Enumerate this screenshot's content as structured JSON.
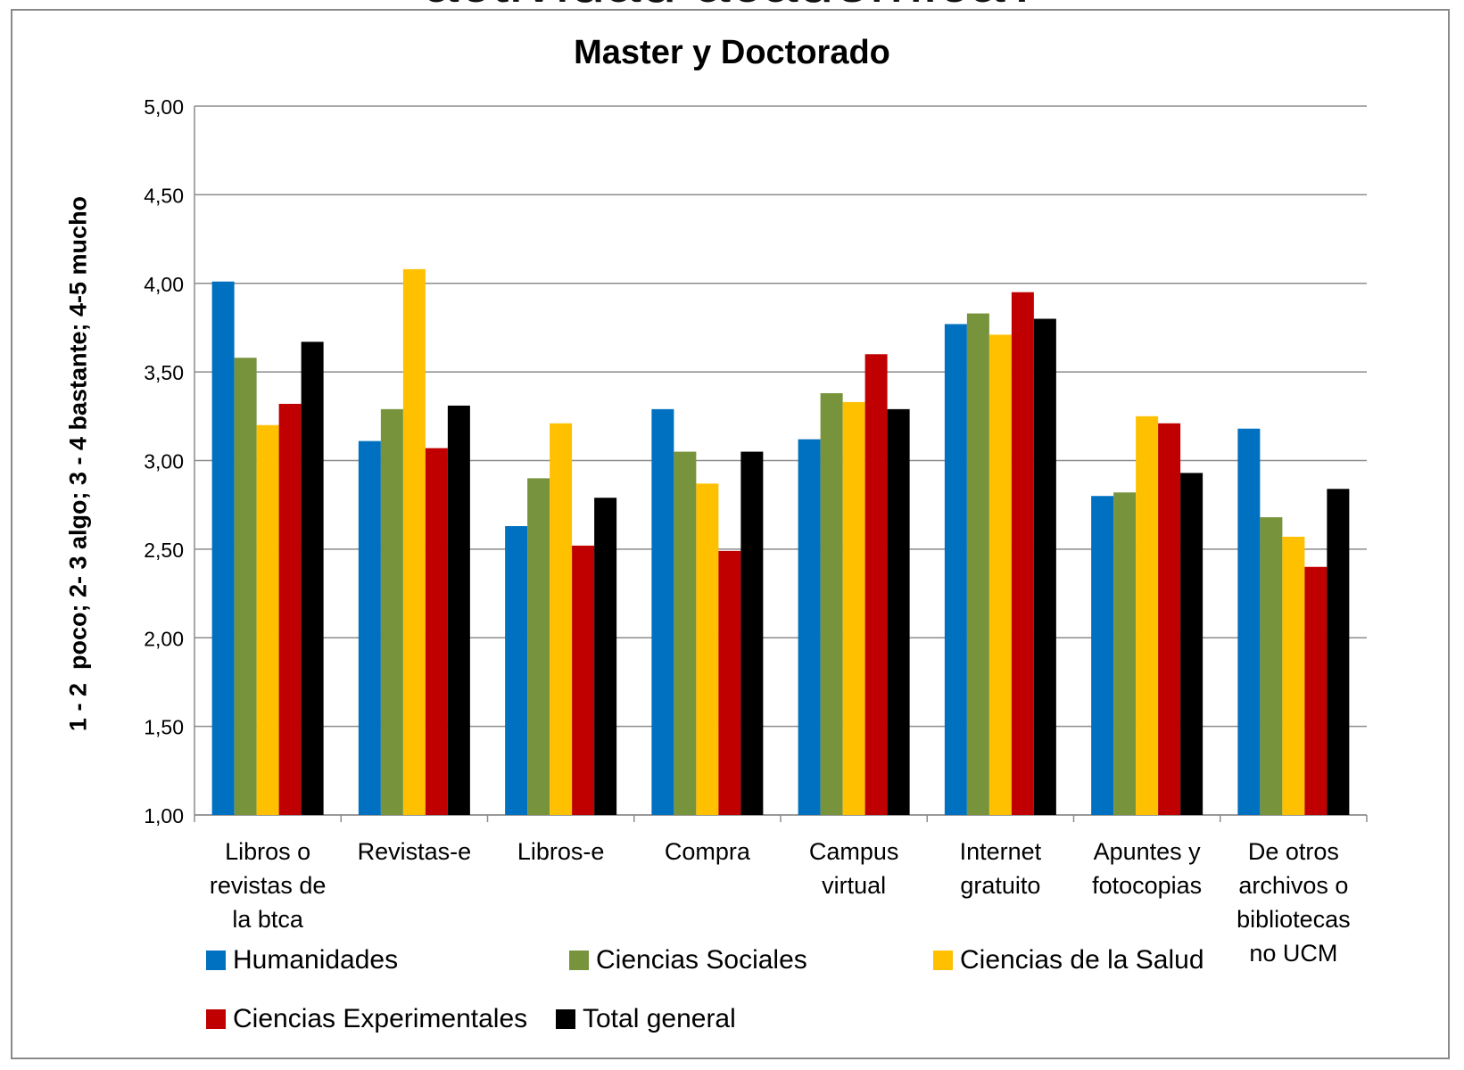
{
  "page": {
    "cut_title": "actividad académica?"
  },
  "chart_data": {
    "type": "bar",
    "title": "Master y Doctorado",
    "ylabel": "1 - 2  poco; 2- 3 algo; 3 - 4 bastante; 4-5 mucho",
    "xlabel": "",
    "ylim": [
      1.0,
      5.0
    ],
    "yticks": [
      "1,00",
      "1,50",
      "2,00",
      "2,50",
      "3,00",
      "3,50",
      "4,00",
      "4,50",
      "5,00"
    ],
    "ytick_values": [
      1.0,
      1.5,
      2.0,
      2.5,
      3.0,
      3.5,
      4.0,
      4.5,
      5.0
    ],
    "grid": true,
    "legend_position": "bottom",
    "categories": [
      [
        "Libros o",
        "revistas de",
        "la btca"
      ],
      [
        "Revistas-e"
      ],
      [
        "Libros-e"
      ],
      [
        "Compra"
      ],
      [
        "Campus",
        "virtual"
      ],
      [
        "Internet",
        "gratuito"
      ],
      [
        "Apuntes y",
        "fotocopias"
      ],
      [
        "De otros",
        "archivos o",
        "bibliotecas",
        "no UCM"
      ]
    ],
    "series": [
      {
        "name": "Humanidades",
        "color": "#0070C0",
        "values": [
          4.01,
          3.11,
          2.63,
          3.29,
          3.12,
          3.77,
          2.8,
          3.18
        ]
      },
      {
        "name": "Ciencias Sociales",
        "color": "#77933C",
        "values": [
          3.58,
          3.29,
          2.9,
          3.05,
          3.38,
          3.83,
          2.82,
          2.68
        ]
      },
      {
        "name": "Ciencias de la Salud",
        "color": "#FFC000",
        "values": [
          3.2,
          4.08,
          3.21,
          2.87,
          3.33,
          3.71,
          3.25,
          2.57
        ]
      },
      {
        "name": "Ciencias Experimentales",
        "color": "#C00000",
        "values": [
          3.32,
          3.07,
          2.52,
          2.49,
          3.6,
          3.95,
          3.21,
          2.4
        ]
      },
      {
        "name": "Total general",
        "color": "#000000",
        "values": [
          3.67,
          3.31,
          2.79,
          3.05,
          3.29,
          3.8,
          2.93,
          2.84
        ]
      }
    ]
  }
}
